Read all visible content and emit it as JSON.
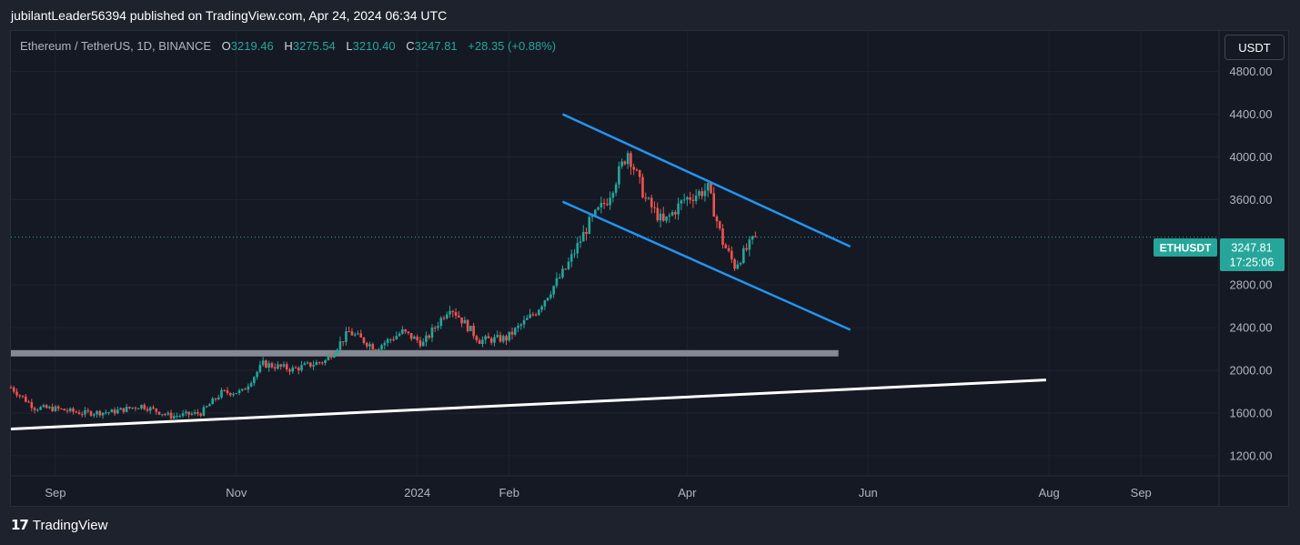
{
  "header": {
    "publisher": "jubilantLeader56394 published on TradingView.com, Apr 24, 2024 06:34 UTC"
  },
  "legend": {
    "symbol": "Ethereum / TetherUS, 1D, BINANCE",
    "open_label": "O",
    "open": "3219.46",
    "high_label": "H",
    "high": "3275.54",
    "low_label": "L",
    "low": "3210.40",
    "close_label": "C",
    "close": "3247.81",
    "change": "+28.35 (+0.88%)"
  },
  "currency_button": "USDT",
  "price_badge": {
    "ticker": "ETHUSDT",
    "price": "3247.81",
    "countdown": "17:25:06"
  },
  "footer": {
    "brand": "TradingView"
  },
  "colors": {
    "up": "#26a69a",
    "down": "#ef5350",
    "channel": "#2196f3",
    "support_zone": "#868993",
    "trendline": "#ffffff",
    "badge": "#26a69a"
  },
  "chart_data": {
    "type": "candlestick",
    "y_ticks": [
      "4800.00",
      "4400.00",
      "4000.00",
      "3600.00",
      "2800.00",
      "2400.00",
      "2000.00",
      "1600.00",
      "1200.00"
    ],
    "y_tick_values": [
      4800,
      4400,
      4000,
      3600,
      2800,
      2400,
      2000,
      1600,
      1200
    ],
    "ylim": [
      1020,
      5180
    ],
    "x_ticks": [
      "Sep",
      "Nov",
      "2024",
      "Feb",
      "Apr",
      "Jun",
      "Aug",
      "Sep"
    ],
    "x_tick_dates": [
      "2023-09-01",
      "2023-11-01",
      "2024-01-01",
      "2024-02-01",
      "2024-04-01",
      "2024-06-01",
      "2024-08-01",
      "2024-09-01"
    ],
    "xlim": [
      "2023-08-17",
      "2024-09-27"
    ],
    "last_price": 3247.81,
    "close_path": [
      [
        "2023-08-17",
        1840
      ],
      [
        "2023-08-25",
        1650
      ],
      [
        "2023-09-01",
        1640
      ],
      [
        "2023-09-10",
        1600
      ],
      [
        "2023-09-20",
        1610
      ],
      [
        "2023-09-30",
        1670
      ],
      [
        "2023-10-10",
        1570
      ],
      [
        "2023-10-20",
        1600
      ],
      [
        "2023-10-27",
        1790
      ],
      [
        "2023-11-03",
        1800
      ],
      [
        "2023-11-10",
        2060
      ],
      [
        "2023-11-20",
        2010
      ],
      [
        "2023-12-01",
        2090
      ],
      [
        "2023-12-09",
        2360
      ],
      [
        "2023-12-18",
        2210
      ],
      [
        "2023-12-27",
        2360
      ],
      [
        "2024-01-03",
        2250
      ],
      [
        "2024-01-12",
        2600
      ],
      [
        "2024-01-22",
        2280
      ],
      [
        "2024-01-31",
        2300
      ],
      [
        "2024-02-10",
        2550
      ],
      [
        "2024-02-20",
        2950
      ],
      [
        "2024-02-28",
        3380
      ],
      [
        "2024-03-05",
        3600
      ],
      [
        "2024-03-12",
        4050
      ],
      [
        "2024-03-18",
        3600
      ],
      [
        "2024-03-24",
        3380
      ],
      [
        "2024-03-31",
        3600
      ],
      [
        "2024-04-08",
        3700
      ],
      [
        "2024-04-13",
        3200
      ],
      [
        "2024-04-17",
        2980
      ],
      [
        "2024-04-24",
        3248
      ]
    ],
    "annotations": {
      "support_zone": {
        "from": "2023-08-17",
        "to": "2024-05-22",
        "price": 2160
      },
      "trendline": {
        "from": [
          "2023-08-17",
          1450
        ],
        "to": [
          "2024-07-31",
          1910
        ]
      },
      "channel_upper": {
        "from": [
          "2024-02-19",
          4400
        ],
        "to": [
          "2024-05-26",
          3160
        ]
      },
      "channel_lower": {
        "from": [
          "2024-02-19",
          3580
        ],
        "to": [
          "2024-05-26",
          2380
        ]
      }
    }
  }
}
